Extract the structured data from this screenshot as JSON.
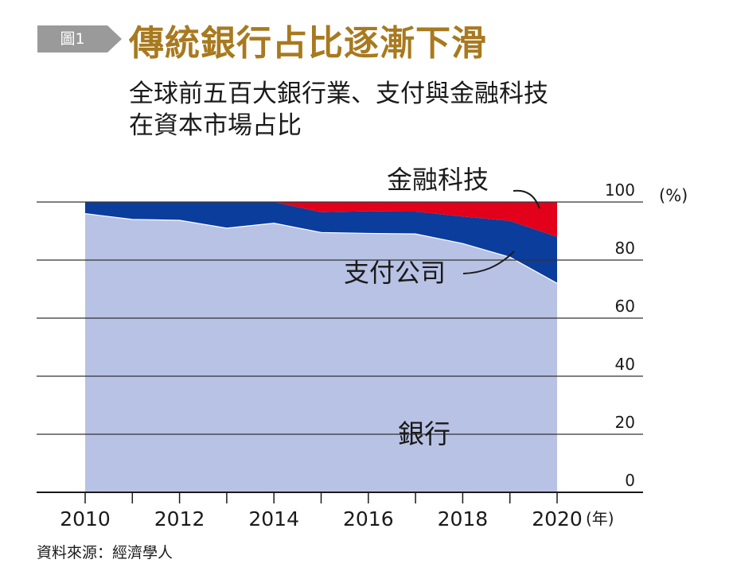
{
  "badge": {
    "label": "圖1"
  },
  "title": "傳統銀行占比逐漸下滑",
  "subtitle": {
    "line1": "全球前五百大銀行業、支付與金融科技",
    "line2": "在資本市場占比"
  },
  "source": "資料來源：經濟學人",
  "colors": {
    "banks": "#b8c2e4",
    "payments": "#0b3d9c",
    "fintech": "#e2001a",
    "title": "#a8791f",
    "badge": "#9a9a9a"
  },
  "chart_data": {
    "type": "area",
    "stacked": true,
    "x": [
      2010,
      2011,
      2012,
      2013,
      2014,
      2015,
      2016,
      2017,
      2018,
      2019,
      2020
    ],
    "series": [
      {
        "name": "銀行",
        "values": [
          96,
          94,
          93.7,
          91,
          92.7,
          89.5,
          89.2,
          89,
          85.7,
          81,
          72
        ]
      },
      {
        "name": "支付公司",
        "values": [
          4,
          6,
          6.3,
          9,
          7.3,
          7,
          7.6,
          7.7,
          9.3,
          12.5,
          16
        ]
      },
      {
        "name": "金融科技",
        "values": [
          0,
          0,
          0,
          0,
          0,
          3.5,
          3.2,
          3.3,
          5,
          6.5,
          12
        ]
      }
    ],
    "xlabel_unit": "(年)",
    "ylabel_unit": "(%)",
    "ylim": [
      0,
      100
    ],
    "yticks": [
      0,
      20,
      40,
      60,
      80,
      100
    ],
    "xticks": [
      2010,
      2012,
      2014,
      2016,
      2018,
      2020
    ],
    "grid": true,
    "y_axis_position": "right",
    "annotations": [
      "金融科技",
      "支付公司",
      "銀行"
    ]
  }
}
